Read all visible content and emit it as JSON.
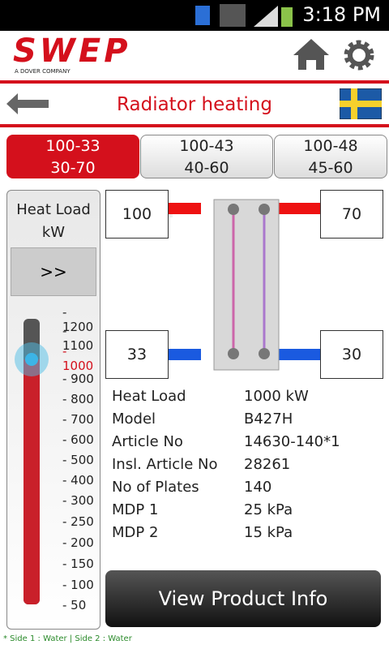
{
  "status_bar": {
    "time": "3:18 PM"
  },
  "header": {
    "logo": "SWEP",
    "logo_tagline": "A DOVER COMPANY"
  },
  "nav": {
    "title": "Radiator heating"
  },
  "tabs": [
    {
      "line1": "100-33",
      "line2": "30-70",
      "selected": true
    },
    {
      "line1": "100-43",
      "line2": "40-60",
      "selected": false
    },
    {
      "line1": "100-48",
      "line2": "45-60",
      "selected": false
    }
  ],
  "slider_panel": {
    "label_line1": "Heat Load",
    "label_line2": "kW",
    "button": ">>",
    "scale": [
      "- 1200",
      "- 1100",
      "- 1000",
      "- 900",
      "- 800",
      "- 700",
      "- 600",
      "- 500",
      "- 400",
      "- 300",
      "- 250",
      "- 200",
      "- 150",
      "- 100",
      "- 50"
    ],
    "selected_index": 2
  },
  "diagram": {
    "in_hot": "100",
    "out_hot": "70",
    "out_cold": "33",
    "in_cold": "30"
  },
  "info": [
    [
      "Heat Load",
      "1000 kW"
    ],
    [
      "Model",
      "B427H"
    ],
    [
      "Article No",
      "14630-140*1"
    ],
    [
      "Insl. Article No",
      "28261"
    ],
    [
      "No of Plates",
      "140"
    ],
    [
      "MDP 1",
      "25 kPa"
    ],
    [
      "MDP 2",
      "15 kPa"
    ]
  ],
  "button": "View Product Info",
  "footer": "* Side 1 : Water | Side 2 : Water"
}
